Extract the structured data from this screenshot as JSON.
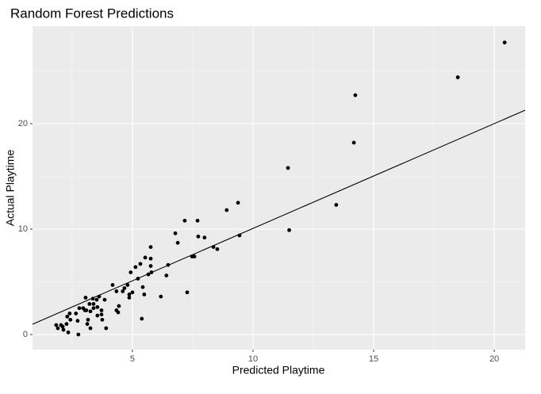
{
  "chart_data": {
    "type": "scatter",
    "title": "Random Forest Predictions",
    "x_label": "Predicted Playtime",
    "y_label": "Actual Playtime",
    "xlim": [
      0.86,
      21.28
    ],
    "ylim": [
      -1.43,
      29.25
    ],
    "xticks": [
      5,
      10,
      15,
      20
    ],
    "yticks": [
      0,
      10,
      20
    ],
    "x_minor_ticks": [
      2.5,
      7.5,
      12.5,
      17.5
    ],
    "y_minor_ticks": [
      5,
      15,
      25
    ],
    "grid": true,
    "color": "#000000",
    "x": [
      20.43,
      18.49,
      14.24,
      14.18,
      11.45,
      13.45,
      11.5,
      9.38,
      8.91,
      9.44,
      7.17,
      7.7,
      6.78,
      7.73,
      7.99,
      6.88,
      8.36,
      8.52,
      5.76,
      7.47,
      7.57,
      5.53,
      5.76,
      6.48,
      5.33,
      5.13,
      5.76,
      4.93,
      6.41,
      5.66,
      5.79,
      5.23,
      5.43,
      4.8,
      4.18,
      4.67,
      6.18,
      7.27,
      5.49,
      5.0,
      4.87,
      4.6,
      4.87,
      4.34,
      3.85,
      3.62,
      3.06,
      3.36,
      3.52,
      3.22,
      3.39,
      3.55,
      4.44,
      4.41,
      4.34,
      3.72,
      3.39,
      2.96,
      2.8,
      3.09,
      3.26,
      3.03,
      2.66,
      2.4,
      2.3,
      2.43,
      2.73,
      3.16,
      3.55,
      3.72,
      3.75,
      3.13,
      3.26,
      3.91,
      5.39,
      2.27,
      2.04,
      1.91,
      2.11,
      2.14,
      2.34,
      2.76,
      1.84
    ],
    "values": [
      27.7,
      24.4,
      22.7,
      18.2,
      15.8,
      12.3,
      9.9,
      12.5,
      11.8,
      9.4,
      10.8,
      10.8,
      9.6,
      9.3,
      9.2,
      8.7,
      8.3,
      8.1,
      8.3,
      7.4,
      7.4,
      7.3,
      7.2,
      6.6,
      6.7,
      6.4,
      6.5,
      5.9,
      5.6,
      5.7,
      5.9,
      5.3,
      4.5,
      4.7,
      4.7,
      4.4,
      3.6,
      4.0,
      3.8,
      4.0,
      3.5,
      4.1,
      3.8,
      4.1,
      3.3,
      3.6,
      3.5,
      3.4,
      3.3,
      2.9,
      2.9,
      2.6,
      2.7,
      2.1,
      2.3,
      2.3,
      2.5,
      2.5,
      2.5,
      2.3,
      2.2,
      2.3,
      2.0,
      2.0,
      1.7,
      1.4,
      1.3,
      1.4,
      1.8,
      1.9,
      1.4,
      1.0,
      0.6,
      0.6,
      1.5,
      1.0,
      0.9,
      0.6,
      0.75,
      0.45,
      0.2,
      0.0,
      0.9
    ],
    "fit_line": {
      "color": "#000000",
      "x": [
        0.86,
        21.28
      ],
      "y": [
        0.98,
        21.28
      ]
    }
  }
}
